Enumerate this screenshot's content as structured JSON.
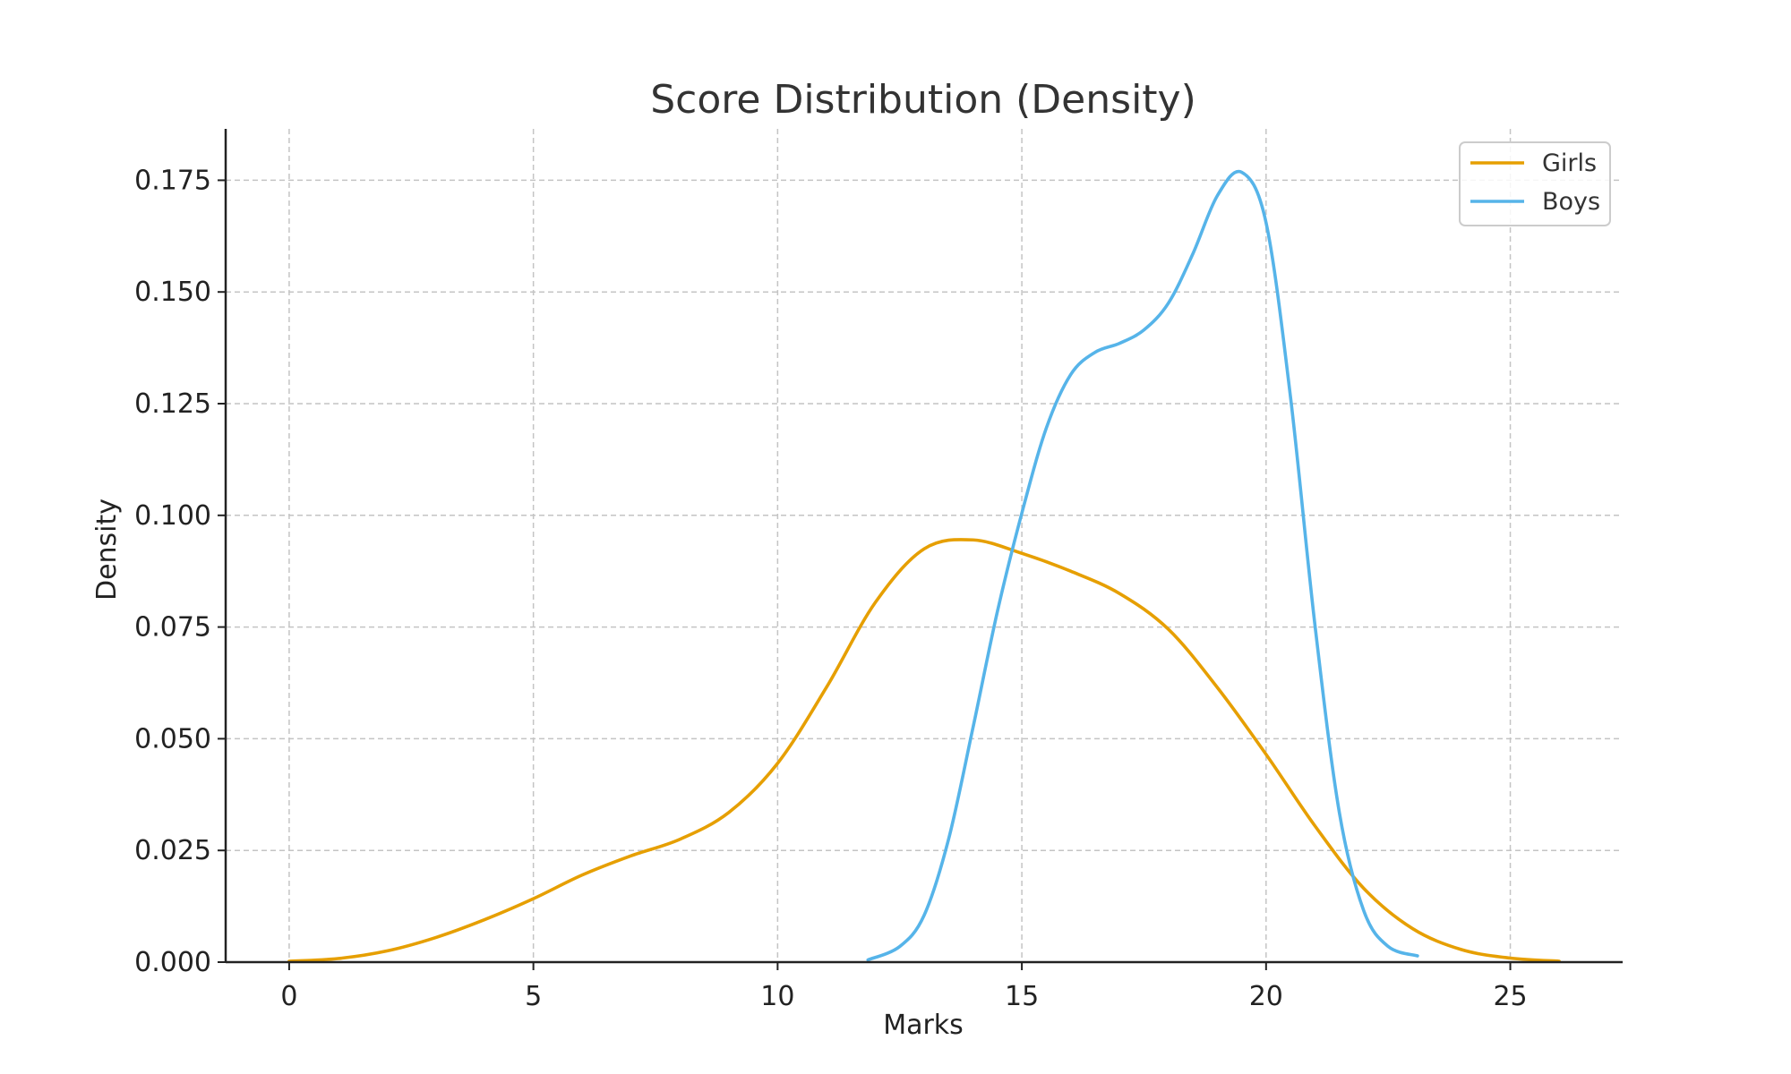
{
  "chart_data": {
    "type": "line",
    "title": "Score Distribution (Density)",
    "xlabel": "Marks",
    "ylabel": "Density",
    "xlim": [
      -1.3,
      27.3
    ],
    "ylim": [
      0,
      0.1865
    ],
    "xticks": [
      0,
      5,
      10,
      15,
      20,
      25
    ],
    "yticks": [
      0.0,
      0.025,
      0.05,
      0.075,
      0.1,
      0.125,
      0.15,
      0.175
    ],
    "ytick_labels": [
      "0.000",
      "0.025",
      "0.050",
      "0.075",
      "0.100",
      "0.125",
      "0.150",
      "0.175"
    ],
    "grid": true,
    "legend": {
      "placement": "top-right",
      "entries": [
        "Girls",
        "Boys"
      ]
    },
    "series": [
      {
        "name": "Girls",
        "color": "#E69F00",
        "points": [
          [
            0,
            0.0002
          ],
          [
            1,
            0.0008
          ],
          [
            2,
            0.0025
          ],
          [
            3,
            0.0055
          ],
          [
            4,
            0.0095
          ],
          [
            5,
            0.0142
          ],
          [
            6,
            0.0195
          ],
          [
            7,
            0.0238
          ],
          [
            8,
            0.0275
          ],
          [
            9,
            0.0335
          ],
          [
            10,
            0.0445
          ],
          [
            11,
            0.0615
          ],
          [
            12,
            0.0805
          ],
          [
            13,
            0.0925
          ],
          [
            14,
            0.0945
          ],
          [
            15,
            0.0915
          ],
          [
            16,
            0.0875
          ],
          [
            17,
            0.0825
          ],
          [
            18,
            0.0745
          ],
          [
            19,
            0.0615
          ],
          [
            20,
            0.0465
          ],
          [
            21,
            0.0305
          ],
          [
            22,
            0.0165
          ],
          [
            23,
            0.0075
          ],
          [
            24,
            0.0028
          ],
          [
            25,
            0.0009
          ],
          [
            26,
            0.0002
          ]
        ]
      },
      {
        "name": "Boys",
        "color": "#56B4E9",
        "points": [
          [
            11.85,
            0.0005
          ],
          [
            12.5,
            0.0035
          ],
          [
            13.0,
            0.0105
          ],
          [
            13.5,
            0.0275
          ],
          [
            14.0,
            0.0525
          ],
          [
            14.5,
            0.0785
          ],
          [
            15.0,
            0.1005
          ],
          [
            15.5,
            0.1195
          ],
          [
            16.0,
            0.1315
          ],
          [
            16.5,
            0.1365
          ],
          [
            17.0,
            0.1385
          ],
          [
            17.5,
            0.1415
          ],
          [
            18.0,
            0.1475
          ],
          [
            18.5,
            0.1585
          ],
          [
            19.0,
            0.1715
          ],
          [
            19.5,
            0.1768
          ],
          [
            20.0,
            0.1655
          ],
          [
            20.5,
            0.1265
          ],
          [
            21.0,
            0.0755
          ],
          [
            21.5,
            0.0335
          ],
          [
            22.0,
            0.0115
          ],
          [
            22.5,
            0.0035
          ],
          [
            23.1,
            0.0014
          ]
        ]
      }
    ]
  }
}
